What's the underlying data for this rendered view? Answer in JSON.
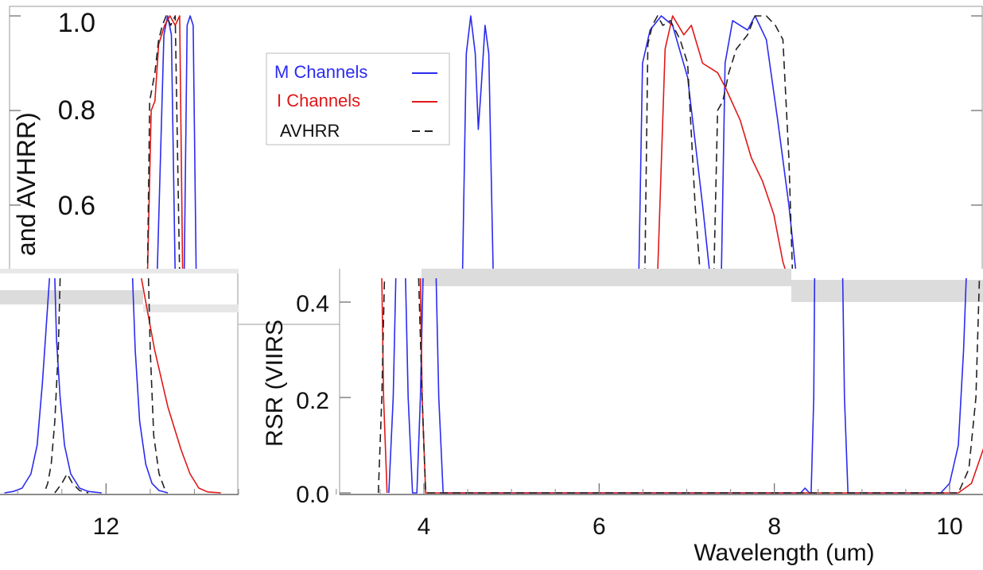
{
  "chart_data": {
    "type": "line",
    "ylabel_top": "and AVHRR)",
    "ylabel_bottom": "RSR (VIIRS",
    "xlabel": "Wavelength (um)",
    "grid": false,
    "legend_placement": "top-left",
    "top_panel": {
      "x_range": [
        0,
        12
      ],
      "ylim": [
        0.5,
        1.0
      ],
      "y_ticks": [
        "0.6",
        "0.8",
        "1.0"
      ],
      "series": [
        {
          "name": "M Channels",
          "color": "#2b2bf0",
          "style": "solid",
          "segments": [
            [
              [
                1.48,
                0.45
              ],
              [
                1.57,
                0.96
              ],
              [
                1.62,
                1.0
              ],
              [
                1.67,
                0.96
              ],
              [
                1.72,
                0.45
              ]
            ],
            [
              [
                1.84,
                0.45
              ],
              [
                1.88,
                0.98
              ],
              [
                1.92,
                1.0
              ],
              [
                1.96,
                0.98
              ],
              [
                2.0,
                0.45
              ]
            ],
            [
              [
                5.55,
                0.45
              ],
              [
                5.6,
                0.92
              ],
              [
                5.66,
                1.0
              ],
              [
                5.72,
                0.92
              ],
              [
                5.76,
                0.76
              ],
              [
                5.8,
                0.85
              ],
              [
                5.85,
                0.98
              ],
              [
                5.9,
                0.92
              ],
              [
                5.96,
                0.45
              ]
            ],
            [
              [
                7.9,
                0.45
              ],
              [
                7.95,
                0.9
              ],
              [
                8.05,
                0.97
              ],
              [
                8.2,
                1.0
              ],
              [
                8.35,
                0.98
              ],
              [
                8.55,
                0.87
              ],
              [
                8.75,
                0.6
              ],
              [
                8.85,
                0.45
              ]
            ],
            [
              [
                9.0,
                0.45
              ],
              [
                9.05,
                0.9
              ],
              [
                9.15,
                0.99
              ],
              [
                9.25,
                0.98
              ],
              [
                9.35,
                0.97
              ],
              [
                9.45,
                1.0
              ],
              [
                9.6,
                0.95
              ],
              [
                9.75,
                0.78
              ],
              [
                9.9,
                0.6
              ],
              [
                10.0,
                0.45
              ]
            ]
          ]
        },
        {
          "name": "I Channels",
          "color": "#e01818",
          "style": "solid",
          "segments": [
            [
              [
                1.35,
                0.45
              ],
              [
                1.4,
                0.8
              ],
              [
                1.45,
                0.82
              ],
              [
                1.5,
                0.94
              ],
              [
                1.58,
                0.98
              ],
              [
                1.65,
                1.0
              ],
              [
                1.72,
                0.98
              ],
              [
                1.78,
                1.0
              ],
              [
                1.82,
                0.45
              ]
            ],
            [
              [
                8.15,
                0.45
              ],
              [
                8.25,
                0.93
              ],
              [
                8.35,
                1.0
              ],
              [
                8.5,
                0.96
              ],
              [
                8.6,
                0.98
              ],
              [
                8.75,
                0.9
              ],
              [
                8.95,
                0.88
              ],
              [
                9.05,
                0.85
              ],
              [
                9.25,
                0.78
              ],
              [
                9.4,
                0.7
              ],
              [
                9.55,
                0.65
              ],
              [
                9.7,
                0.58
              ],
              [
                9.82,
                0.48
              ],
              [
                9.88,
                0.45
              ]
            ]
          ]
        },
        {
          "name": "AVHRR",
          "color": "#222222",
          "style": "dashed",
          "segments": [
            [
              [
                1.35,
                0.45
              ],
              [
                1.38,
                0.82
              ],
              [
                1.45,
                0.88
              ],
              [
                1.5,
                0.95
              ],
              [
                1.55,
                0.98
              ],
              [
                1.6,
                1.0
              ],
              [
                1.66,
                0.98
              ],
              [
                1.72,
                1.0
              ],
              [
                1.78,
                0.45
              ]
            ],
            [
              [
                7.98,
                0.45
              ],
              [
                8.02,
                0.94
              ],
              [
                8.08,
                0.98
              ],
              [
                8.15,
                1.0
              ],
              [
                8.22,
                0.98
              ],
              [
                8.32,
                0.99
              ],
              [
                8.45,
                0.95
              ],
              [
                8.55,
                0.9
              ],
              [
                8.65,
                0.6
              ],
              [
                8.72,
                0.45
              ]
            ],
            [
              [
                8.9,
                0.45
              ],
              [
                8.95,
                0.8
              ],
              [
                9.02,
                0.82
              ],
              [
                9.1,
                0.88
              ],
              [
                9.2,
                0.93
              ],
              [
                9.35,
                0.96
              ],
              [
                9.45,
                1.0
              ],
              [
                9.6,
                1.0
              ],
              [
                9.72,
                0.98
              ],
              [
                9.82,
                0.95
              ],
              [
                9.9,
                0.7
              ],
              [
                9.95,
                0.45
              ]
            ]
          ]
        }
      ]
    },
    "bottom_left_panel": {
      "x_range": [
        10.8,
        13.5
      ],
      "ylim": [
        0.0,
        0.45
      ],
      "x_ticks": [
        12
      ],
      "x_tick_labels": [
        "12"
      ],
      "series": [
        {
          "name": "M Channels",
          "color": "#2b2bf0",
          "style": "solid",
          "segments": [
            [
              [
                10.85,
                0.0
              ],
              [
                10.95,
                0.003
              ],
              [
                11.05,
                0.01
              ],
              [
                11.15,
                0.04
              ],
              [
                11.22,
                0.1
              ],
              [
                11.28,
                0.23
              ],
              [
                11.32,
                0.34
              ],
              [
                11.36,
                0.45
              ]
            ],
            [
              [
                11.42,
                0.45
              ],
              [
                11.44,
                0.32
              ],
              [
                11.48,
                0.2
              ],
              [
                11.53,
                0.1
              ],
              [
                11.6,
                0.04
              ],
              [
                11.7,
                0.01
              ],
              [
                11.8,
                0.003
              ],
              [
                11.95,
                0.0
              ]
            ],
            [
              [
                12.3,
                0.45
              ],
              [
                12.33,
                0.3
              ],
              [
                12.38,
                0.15
              ],
              [
                12.45,
                0.06
              ],
              [
                12.52,
                0.02
              ],
              [
                12.6,
                0.005
              ],
              [
                12.7,
                0.0
              ]
            ]
          ]
        },
        {
          "name": "I Channels",
          "color": "#e01818",
          "style": "solid",
          "segments": [
            [
              [
                12.4,
                0.45
              ],
              [
                12.55,
                0.3
              ],
              [
                12.7,
                0.18
              ],
              [
                12.85,
                0.09
              ],
              [
                12.95,
                0.04
              ],
              [
                13.05,
                0.01
              ],
              [
                13.15,
                0.002
              ],
              [
                13.3,
                0.0
              ]
            ]
          ]
        },
        {
          "name": "AVHRR",
          "color": "#222222",
          "style": "dashed",
          "segments": [
            [
              [
                11.48,
                0.45
              ],
              [
                11.46,
                0.3
              ],
              [
                11.42,
                0.15
              ],
              [
                11.38,
                0.06
              ],
              [
                11.34,
                0.02
              ],
              [
                11.3,
                0.0
              ]
            ],
            [
              [
                11.42,
                0.0
              ],
              [
                11.5,
                0.02
              ],
              [
                11.56,
                0.04
              ],
              [
                11.62,
                0.02
              ],
              [
                11.7,
                0.005
              ],
              [
                11.8,
                0.0
              ]
            ],
            [
              [
                12.48,
                0.45
              ],
              [
                12.5,
                0.3
              ],
              [
                12.54,
                0.12
              ],
              [
                12.6,
                0.04
              ],
              [
                12.68,
                0.0
              ]
            ]
          ]
        }
      ]
    },
    "bottom_right_panel": {
      "x_range": [
        2.95,
        10.6
      ],
      "ylim": [
        0.0,
        0.45
      ],
      "y_ticks": [
        "0.0",
        "0.2",
        "0.4"
      ],
      "x_ticks": [
        4,
        6,
        8,
        10
      ],
      "x_tick_labels": [
        "4",
        "6",
        "8",
        "10"
      ],
      "series": [
        {
          "name": "M Channels",
          "color": "#2b2bf0",
          "style": "solid",
          "segments": [
            [
              [
                3.6,
                0.0
              ],
              [
                3.65,
                0.2
              ],
              [
                3.68,
                0.45
              ]
            ],
            [
              [
                3.79,
                0.45
              ],
              [
                3.82,
                0.2
              ],
              [
                3.87,
                0.0
              ],
              [
                3.92,
                0.0
              ],
              [
                3.96,
                0.2
              ],
              [
                3.99,
                0.45
              ]
            ],
            [
              [
                4.14,
                0.45
              ],
              [
                4.17,
                0.2
              ],
              [
                4.22,
                0.0
              ],
              [
                8.3,
                0.0
              ],
              [
                8.35,
                0.01
              ],
              [
                8.4,
                0.0
              ]
            ],
            [
              [
                8.42,
                0.0
              ],
              [
                8.45,
                0.2
              ],
              [
                8.46,
                0.45
              ]
            ],
            [
              [
                8.78,
                0.45
              ],
              [
                8.8,
                0.2
              ],
              [
                8.84,
                0.0
              ],
              [
                9.9,
                0.0
              ],
              [
                10.0,
                0.02
              ],
              [
                10.1,
                0.1
              ],
              [
                10.16,
                0.3
              ],
              [
                10.19,
                0.45
              ]
            ]
          ]
        },
        {
          "name": "I Channels",
          "color": "#e01818",
          "style": "solid",
          "segments": [
            [
              [
                3.52,
                0.45
              ],
              [
                3.54,
                0.2
              ],
              [
                3.58,
                0.0
              ]
            ],
            [
              [
                3.96,
                0.45
              ],
              [
                3.98,
                0.2
              ],
              [
                4.02,
                0.0
              ],
              [
                10.1,
                0.0
              ],
              [
                10.25,
                0.02
              ],
              [
                10.4,
                0.1
              ],
              [
                10.5,
                0.3
              ],
              [
                10.55,
                0.45
              ]
            ]
          ]
        },
        {
          "name": "AVHRR",
          "color": "#222222",
          "style": "dashed",
          "segments": [
            [
              [
                3.48,
                0.0
              ],
              [
                3.52,
                0.2
              ],
              [
                3.55,
                0.45
              ]
            ],
            [
              [
                3.94,
                0.45
              ],
              [
                3.98,
                0.2
              ],
              [
                4.02,
                0.0
              ],
              [
                10.1,
                0.0
              ],
              [
                10.22,
                0.05
              ],
              [
                10.3,
                0.2
              ],
              [
                10.34,
                0.45
              ]
            ]
          ]
        }
      ]
    },
    "legend": [
      {
        "label": "M Channels",
        "color": "#2b2bf0",
        "style": "solid"
      },
      {
        "label": "I Channels",
        "color": "#e01818",
        "style": "solid"
      },
      {
        "label": "AVHRR",
        "color": "#222222",
        "style": "dashed"
      }
    ]
  }
}
